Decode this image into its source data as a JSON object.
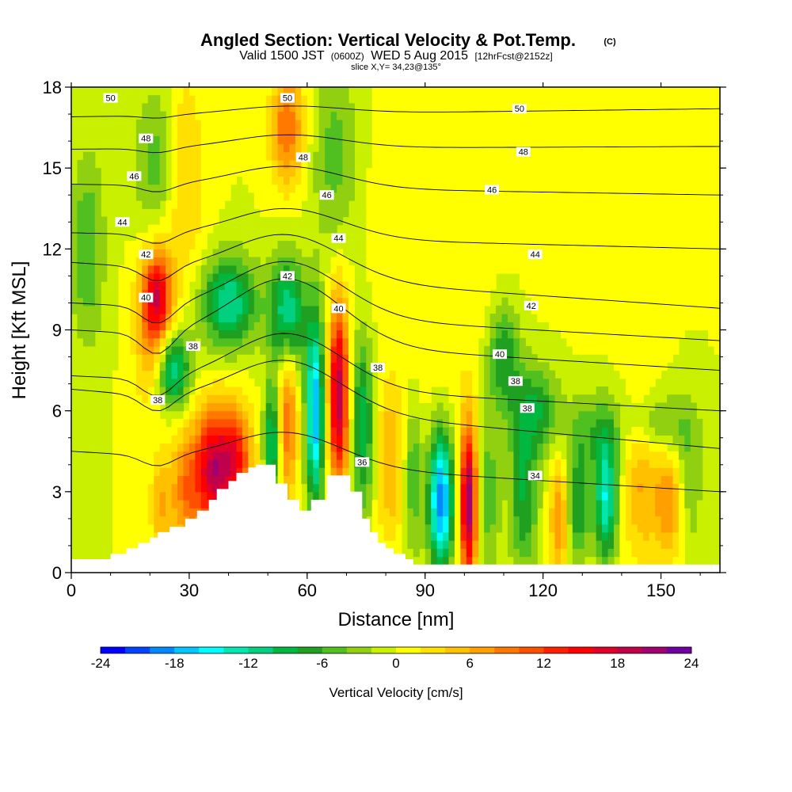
{
  "chart_data": {
    "type": "heatmap",
    "title": "Angled Section: Vertical Velocity & Pot.Temp.",
    "title_units": "(C)",
    "subtitle": {
      "main": "Valid 1500 JST",
      "zulu": "(0600Z)",
      "date": "WED 5 Aug 2015",
      "fcst": "[12hrFcst@2152z]"
    },
    "slice_label": "slice X,Y= 34,23@135°",
    "xlabel": "Distance [nm]",
    "ylabel": "Height [Kft MSL]",
    "xlim": [
      0,
      165
    ],
    "ylim": [
      0,
      18
    ],
    "x_ticks": [
      "0",
      "30",
      "60",
      "90",
      "120",
      "150"
    ],
    "y_ticks": [
      "0",
      "3",
      "6",
      "9",
      "12",
      "15",
      "18"
    ],
    "colorbar": {
      "label": "Vertical Velocity [cm/s]",
      "range": [
        -24,
        24
      ],
      "tick_labels": [
        "-24",
        "-18",
        "-12",
        "-6",
        "0",
        "6",
        "12",
        "18",
        "24"
      ],
      "colors": [
        "#0000ff",
        "#0044ff",
        "#0088ff",
        "#00c8ff",
        "#00ffff",
        "#00e8b0",
        "#00d080",
        "#00b840",
        "#20a020",
        "#50c020",
        "#90d010",
        "#c8f000",
        "#ffff00",
        "#ffe000",
        "#ffc000",
        "#ffa000",
        "#ff7800",
        "#ff5000",
        "#ff2000",
        "#ff0000",
        "#e0002a",
        "#c0004a",
        "#a00070",
        "#7000a0"
      ]
    },
    "terrain": [
      [
        0,
        0.5
      ],
      [
        10,
        0.5
      ],
      [
        10,
        0.7
      ],
      [
        14,
        0.7
      ],
      [
        14,
        0.9
      ],
      [
        17,
        0.9
      ],
      [
        17,
        1.1
      ],
      [
        20,
        1.1
      ],
      [
        20,
        1.3
      ],
      [
        22,
        1.3
      ],
      [
        22,
        1.5
      ],
      [
        25,
        1.5
      ],
      [
        25,
        1.7
      ],
      [
        29,
        1.7
      ],
      [
        29,
        2.0
      ],
      [
        32,
        2.0
      ],
      [
        32,
        2.3
      ],
      [
        35,
        2.3
      ],
      [
        35,
        2.7
      ],
      [
        37,
        2.7
      ],
      [
        37,
        3.1
      ],
      [
        40,
        3.1
      ],
      [
        40,
        3.4
      ],
      [
        42,
        3.4
      ],
      [
        42,
        3.7
      ],
      [
        45,
        3.7
      ],
      [
        45,
        3.9
      ],
      [
        47,
        3.9
      ],
      [
        47,
        4.0
      ],
      [
        52,
        4.0
      ],
      [
        52,
        3.3
      ],
      [
        55,
        3.3
      ],
      [
        55,
        2.7
      ],
      [
        58,
        2.7
      ],
      [
        58,
        2.3
      ],
      [
        61,
        2.3
      ],
      [
        61,
        2.7
      ],
      [
        65,
        2.7
      ],
      [
        65,
        3.6
      ],
      [
        71,
        3.6
      ],
      [
        71,
        3.0
      ],
      [
        74,
        3.0
      ],
      [
        74,
        2.0
      ],
      [
        76,
        2.0
      ],
      [
        76,
        1.5
      ],
      [
        78,
        1.5
      ],
      [
        78,
        1.1
      ],
      [
        80,
        1.1
      ],
      [
        80,
        0.9
      ],
      [
        82,
        0.9
      ],
      [
        82,
        0.7
      ],
      [
        85,
        0.7
      ],
      [
        85,
        0.5
      ],
      [
        87,
        0.5
      ],
      [
        87,
        0.3
      ],
      [
        165,
        0.3
      ]
    ],
    "contour_levels": [
      {
        "value": "50",
        "y0": 16.9,
        "y1": 17.2,
        "ridge": 0.3,
        "labels": [
          [
            10,
            17.6
          ],
          [
            55,
            17.6
          ],
          [
            114,
            17.2
          ]
        ]
      },
      {
        "value": "48",
        "y0": 15.7,
        "y1": 15.8,
        "ridge": 0.5,
        "labels": [
          [
            19,
            16.1
          ],
          [
            59,
            15.4
          ],
          [
            115,
            15.6
          ]
        ]
      },
      {
        "value": "46",
        "y0": 14.4,
        "y1": 14.0,
        "ridge": 0.8,
        "labels": [
          [
            16,
            14.7
          ],
          [
            65,
            14.0
          ],
          [
            107,
            14.2
          ]
        ]
      },
      {
        "value": "44",
        "y0": 12.6,
        "y1": 12.0,
        "ridge": 1.1,
        "labels": [
          [
            13,
            13.0
          ],
          [
            68,
            12.4
          ],
          [
            118,
            11.8
          ]
        ]
      },
      {
        "value": "42",
        "y0": 11.5,
        "y1": 9.8,
        "ridge": 1.6,
        "labels": [
          [
            19,
            11.8
          ],
          [
            55,
            11.0
          ],
          [
            117,
            9.9
          ]
        ]
      },
      {
        "value": "40",
        "y0": 10.0,
        "y1": 8.6,
        "ridge": 2.0,
        "labels": [
          [
            19,
            10.2
          ],
          [
            68,
            9.8
          ],
          [
            109,
            8.1
          ]
        ]
      },
      {
        "value": "38",
        "y0": 9.0,
        "y1": 7.5,
        "ridge": 2.4,
        "labels": [
          [
            31,
            8.4
          ],
          [
            78,
            7.6
          ],
          [
            113,
            7.1
          ]
        ]
      },
      {
        "value": "38",
        "y0": 7.3,
        "y1": 6.0,
        "ridge": 2.0,
        "labels": [
          [
            22,
            6.4
          ],
          [
            116,
            6.1
          ]
        ]
      },
      {
        "value": "36",
        "y0": 6.8,
        "y1": 4.6,
        "ridge": 1.8,
        "labels": [
          [
            74,
            4.1
          ]
        ]
      },
      {
        "value": "34",
        "y0": 4.5,
        "y1": 3.0,
        "ridge": 1.2,
        "labels": [
          [
            118,
            3.6
          ]
        ]
      }
    ],
    "field_features": [
      {
        "x": 36,
        "y": 3.8,
        "sx": 3.5,
        "sy": 1.6,
        "w": 18
      },
      {
        "x": 42,
        "y": 4.2,
        "sx": 3,
        "sy": 1.4,
        "w": 12
      },
      {
        "x": 29,
        "y": 3.0,
        "sx": 2.5,
        "sy": 1.6,
        "w": 8
      },
      {
        "x": 23,
        "y": 2.5,
        "sx": 2,
        "sy": 1.4,
        "w": 6
      },
      {
        "x": 51,
        "y": 4.8,
        "sx": 1.4,
        "sy": 1.5,
        "w": -12
      },
      {
        "x": 55,
        "y": 6.0,
        "sx": 1.8,
        "sy": 2.4,
        "w": 10
      },
      {
        "x": 62,
        "y": 6.0,
        "sx": 1.6,
        "sy": 2.5,
        "w": -18
      },
      {
        "x": 68,
        "y": 6.6,
        "sx": 1.8,
        "sy": 2.4,
        "w": 20
      },
      {
        "x": 74,
        "y": 5.5,
        "sx": 2.0,
        "sy": 2.3,
        "w": -10
      },
      {
        "x": 81,
        "y": 4.0,
        "sx": 2.2,
        "sy": 2.0,
        "w": 6
      },
      {
        "x": 87,
        "y": 3.5,
        "sx": 1.5,
        "sy": 2.0,
        "w": -6
      },
      {
        "x": 94,
        "y": 2.7,
        "sx": 2.2,
        "sy": 1.8,
        "w": -20
      },
      {
        "x": 101,
        "y": 2.6,
        "sx": 1.5,
        "sy": 2.0,
        "w": 22
      },
      {
        "x": 106,
        "y": 3.0,
        "sx": 2.0,
        "sy": 2.0,
        "w": -6
      },
      {
        "x": 115,
        "y": 2.8,
        "sx": 2.6,
        "sy": 2.0,
        "w": -8
      },
      {
        "x": 124,
        "y": 2.0,
        "sx": 1.6,
        "sy": 1.6,
        "w": 8
      },
      {
        "x": 129,
        "y": 2.5,
        "sx": 2.0,
        "sy": 1.5,
        "w": -8
      },
      {
        "x": 136,
        "y": 2.8,
        "sx": 2.0,
        "sy": 1.6,
        "w": -14
      },
      {
        "x": 145,
        "y": 3.2,
        "sx": 3.0,
        "sy": 2.0,
        "w": 6
      },
      {
        "x": 152,
        "y": 2.5,
        "sx": 2.5,
        "sy": 1.5,
        "w": 8
      },
      {
        "x": 157,
        "y": 3.5,
        "sx": 2.5,
        "sy": 2.0,
        "w": -4
      },
      {
        "x": 26,
        "y": 7.5,
        "sx": 3.0,
        "sy": 1.0,
        "w": -12
      },
      {
        "x": 40,
        "y": 10.0,
        "sx": 5.0,
        "sy": 1.2,
        "w": -12
      },
      {
        "x": 55,
        "y": 9.5,
        "sx": 3.0,
        "sy": 1.5,
        "w": -14
      },
      {
        "x": 22,
        "y": 10.2,
        "sx": 2.5,
        "sy": 1.2,
        "w": 14
      },
      {
        "x": 20,
        "y": 9.0,
        "sx": 3.0,
        "sy": 2.0,
        "w": 6
      },
      {
        "x": 28,
        "y": 14.5,
        "sx": 4.0,
        "sy": 3.0,
        "w": 5
      },
      {
        "x": 55,
        "y": 16.5,
        "sx": 3.0,
        "sy": 1.5,
        "w": 10
      },
      {
        "x": 22,
        "y": 15.2,
        "sx": 4.0,
        "sy": 2.0,
        "w": -6
      },
      {
        "x": 4,
        "y": 12.0,
        "sx": 3.0,
        "sy": 2.5,
        "w": -6
      },
      {
        "x": 67,
        "y": 15.5,
        "sx": 4.0,
        "sy": 2.5,
        "w": -5
      },
      {
        "x": 110,
        "y": 8.0,
        "sx": 3.0,
        "sy": 1.5,
        "w": -8
      },
      {
        "x": 118,
        "y": 6.0,
        "sx": 4.0,
        "sy": 1.2,
        "w": -8
      },
      {
        "x": 133,
        "y": 5.3,
        "sx": 5.0,
        "sy": 1.0,
        "w": -5
      },
      {
        "x": 150,
        "y": 5.5,
        "sx": 5.0,
        "sy": 0.8,
        "w": -5
      },
      {
        "x": 95,
        "y": 12.0,
        "sx": 12.0,
        "sy": 5.0,
        "w": 2
      },
      {
        "x": 142,
        "y": 14.0,
        "sx": 8.0,
        "sy": 3.0,
        "w": 2
      }
    ]
  }
}
